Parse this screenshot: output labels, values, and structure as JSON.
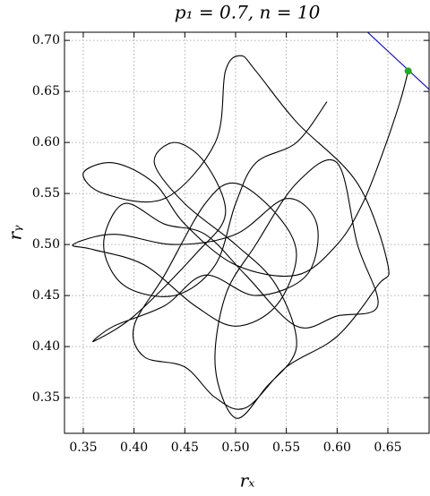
{
  "chart_data": {
    "type": "line",
    "title": "p₁ = 0.7, n = 10",
    "xlabel": "rₓ",
    "ylabel": "rᵧ",
    "xlim": [
      0.3315,
      0.6906
    ],
    "ylim": [
      0.315,
      0.708
    ],
    "xticks": [
      {
        "value": 0.35,
        "label": "0.35"
      },
      {
        "value": 0.4,
        "label": "0.40"
      },
      {
        "value": 0.45,
        "label": "0.45"
      },
      {
        "value": 0.5,
        "label": "0.50"
      },
      {
        "value": 0.55,
        "label": "0.55"
      },
      {
        "value": 0.6,
        "label": "0.60"
      },
      {
        "value": 0.65,
        "label": "0.65"
      }
    ],
    "yticks": [
      {
        "value": 0.35,
        "label": "0.35"
      },
      {
        "value": 0.4,
        "label": "0.40"
      },
      {
        "value": 0.45,
        "label": "0.45"
      },
      {
        "value": 0.5,
        "label": "0.50"
      },
      {
        "value": 0.55,
        "label": "0.55"
      },
      {
        "value": 0.6,
        "label": "0.60"
      },
      {
        "value": 0.65,
        "label": "0.65"
      },
      {
        "value": 0.7,
        "label": "0.70"
      }
    ],
    "grid": true,
    "series": [
      {
        "color": "#000000",
        "marker": false,
        "x": [
          0.67,
          0.662,
          0.645,
          0.625,
          0.6,
          0.56,
          0.5,
          0.45,
          0.42,
          0.38,
          0.35,
          0.37,
          0.43,
          0.48,
          0.49,
          0.505,
          0.52,
          0.56,
          0.62,
          0.65,
          0.64,
          0.6,
          0.55,
          0.51,
          0.48,
          0.45,
          0.41,
          0.4,
          0.43,
          0.47,
          0.5,
          0.54,
          0.56,
          0.54,
          0.5,
          0.46,
          0.41,
          0.36,
          0.34,
          0.38,
          0.44,
          0.5,
          0.55,
          0.58,
          0.57,
          0.52,
          0.47,
          0.43,
          0.38,
          0.36,
          0.4,
          0.46,
          0.49,
          0.47,
          0.44,
          0.42,
          0.45,
          0.5,
          0.54,
          0.56,
          0.53,
          0.5,
          0.48,
          0.49,
          0.52,
          0.56,
          0.6,
          0.62,
          0.64,
          0.6,
          0.56,
          0.51,
          0.47,
          0.43,
          0.39,
          0.37,
          0.39,
          0.44,
          0.48,
          0.5,
          0.52,
          0.56,
          0.59
        ],
        "y": [
          0.67,
          0.64,
          0.59,
          0.54,
          0.5,
          0.47,
          0.48,
          0.52,
          0.56,
          0.58,
          0.57,
          0.55,
          0.545,
          0.6,
          0.67,
          0.685,
          0.67,
          0.62,
          0.56,
          0.48,
          0.46,
          0.41,
          0.38,
          0.34,
          0.35,
          0.38,
          0.39,
          0.42,
          0.47,
          0.54,
          0.56,
          0.53,
          0.49,
          0.44,
          0.42,
          0.44,
          0.48,
          0.495,
          0.5,
          0.51,
          0.5,
          0.51,
          0.545,
          0.52,
          0.47,
          0.45,
          0.47,
          0.44,
          0.42,
          0.405,
          0.43,
          0.49,
          0.53,
          0.58,
          0.6,
          0.58,
          0.54,
          0.5,
          0.46,
          0.4,
          0.36,
          0.33,
          0.38,
          0.45,
          0.5,
          0.56,
          0.58,
          0.5,
          0.44,
          0.43,
          0.42,
          0.47,
          0.51,
          0.52,
          0.54,
          0.5,
          0.46,
          0.45,
          0.48,
          0.54,
          0.58,
          0.6,
          0.64
        ]
      },
      {
        "color": "#0000cc",
        "marker": false,
        "x": [
          0.63,
          0.6906
        ],
        "y": [
          0.708,
          0.652
        ]
      },
      {
        "color": "#22aa22",
        "marker": true,
        "x": [
          0.67
        ],
        "y": [
          0.67
        ]
      }
    ]
  }
}
